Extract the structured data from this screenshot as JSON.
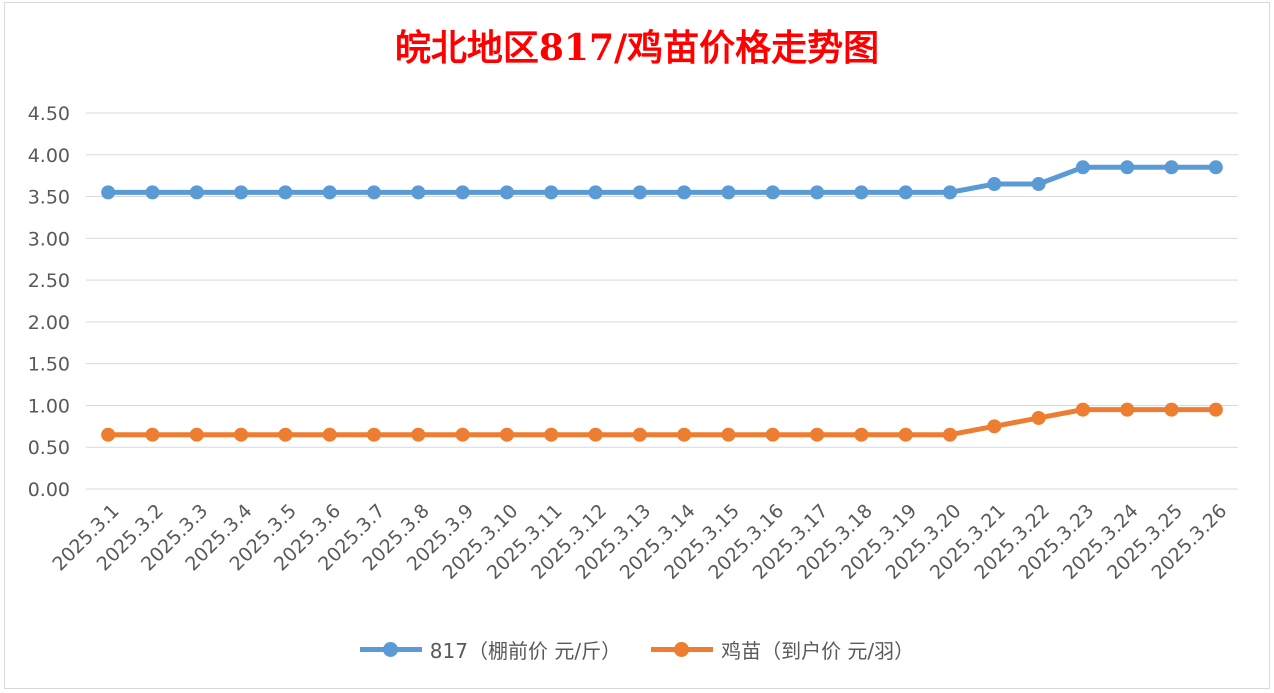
{
  "chart_data": {
    "type": "line",
    "title": "皖北地区817/鸡苗价格走势图",
    "xlabel": "",
    "ylabel": "",
    "categories": [
      "2025.3.1",
      "2025.3.2",
      "2025.3.3",
      "2025.3.4",
      "2025.3.5",
      "2025.3.6",
      "2025.3.7",
      "2025.3.8",
      "2025.3.9",
      "2025.3.10",
      "2025.3.11",
      "2025.3.12",
      "2025.3.13",
      "2025.3.14",
      "2025.3.15",
      "2025.3.16",
      "2025.3.17",
      "2025.3.18",
      "2025.3.19",
      "2025.3.20",
      "2025.3.21",
      "2025.3.22",
      "2025.3.23",
      "2025.3.24",
      "2025.3.25",
      "2025.3.26"
    ],
    "yticks": [
      "0.00",
      "0.50",
      "1.00",
      "1.50",
      "2.00",
      "2.50",
      "3.00",
      "3.50",
      "4.00",
      "4.50"
    ],
    "ylim": [
      0,
      4.5
    ],
    "grid": true,
    "legend_position": "bottom",
    "series": [
      {
        "name": "817（棚前价 元/斤）",
        "color": "#5b9bd5",
        "values": [
          3.55,
          3.55,
          3.55,
          3.55,
          3.55,
          3.55,
          3.55,
          3.55,
          3.55,
          3.55,
          3.55,
          3.55,
          3.55,
          3.55,
          3.55,
          3.55,
          3.55,
          3.55,
          3.55,
          3.55,
          3.65,
          3.65,
          3.85,
          3.85,
          3.85,
          3.85
        ]
      },
      {
        "name": "鸡苗（到户价 元/羽）",
        "color": "#ed7d31",
        "values": [
          0.65,
          0.65,
          0.65,
          0.65,
          0.65,
          0.65,
          0.65,
          0.65,
          0.65,
          0.65,
          0.65,
          0.65,
          0.65,
          0.65,
          0.65,
          0.65,
          0.65,
          0.65,
          0.65,
          0.65,
          0.75,
          0.85,
          0.95,
          0.95,
          0.95,
          0.95
        ]
      }
    ]
  }
}
